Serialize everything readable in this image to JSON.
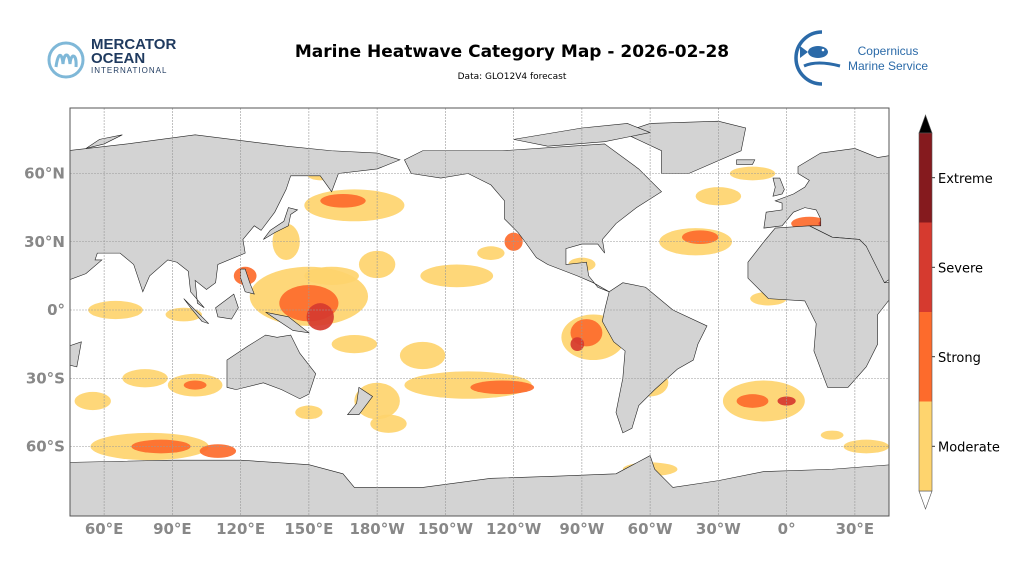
{
  "header": {
    "title": "Marine Heatwave Category Map - 2026-02-28",
    "subtitle": "Data: GLO12V4 forecast"
  },
  "logos": {
    "left": {
      "line1": "MERCATOR",
      "line2": "OCEAN",
      "line3": "INTERNATIONAL",
      "color": "#1f3a5f",
      "accent": "#7fb8d8"
    },
    "right": {
      "line1": "Copernicus",
      "line2": "Marine Service",
      "color": "#2b6aa8"
    }
  },
  "map": {
    "projection": "equirectangular",
    "lon_range": [
      45,
      405
    ],
    "lat_range": [
      -90,
      89
    ],
    "land_color": "#d3d3d3",
    "ocean_color": "#ffffff",
    "grid": true,
    "lon_ticks": [
      "60°E",
      "90°E",
      "120°E",
      "150°E",
      "180°W",
      "150°W",
      "120°W",
      "90°W",
      "60°W",
      "30°W",
      "0°",
      "30°E"
    ],
    "lat_ticks": [
      "60°N",
      "30°N",
      "0°",
      "30°S",
      "60°S"
    ]
  },
  "colorbar": {
    "categories": [
      {
        "label": "Moderate",
        "color": "#fed46e"
      },
      {
        "label": "Strong",
        "color": "#fd6b2c"
      },
      {
        "label": "Severe",
        "color": "#d63a2f"
      },
      {
        "label": "Extreme",
        "color": "#851a1e"
      }
    ],
    "extend_max_color": "#000000",
    "extend_min_color": "#ffffff"
  }
}
